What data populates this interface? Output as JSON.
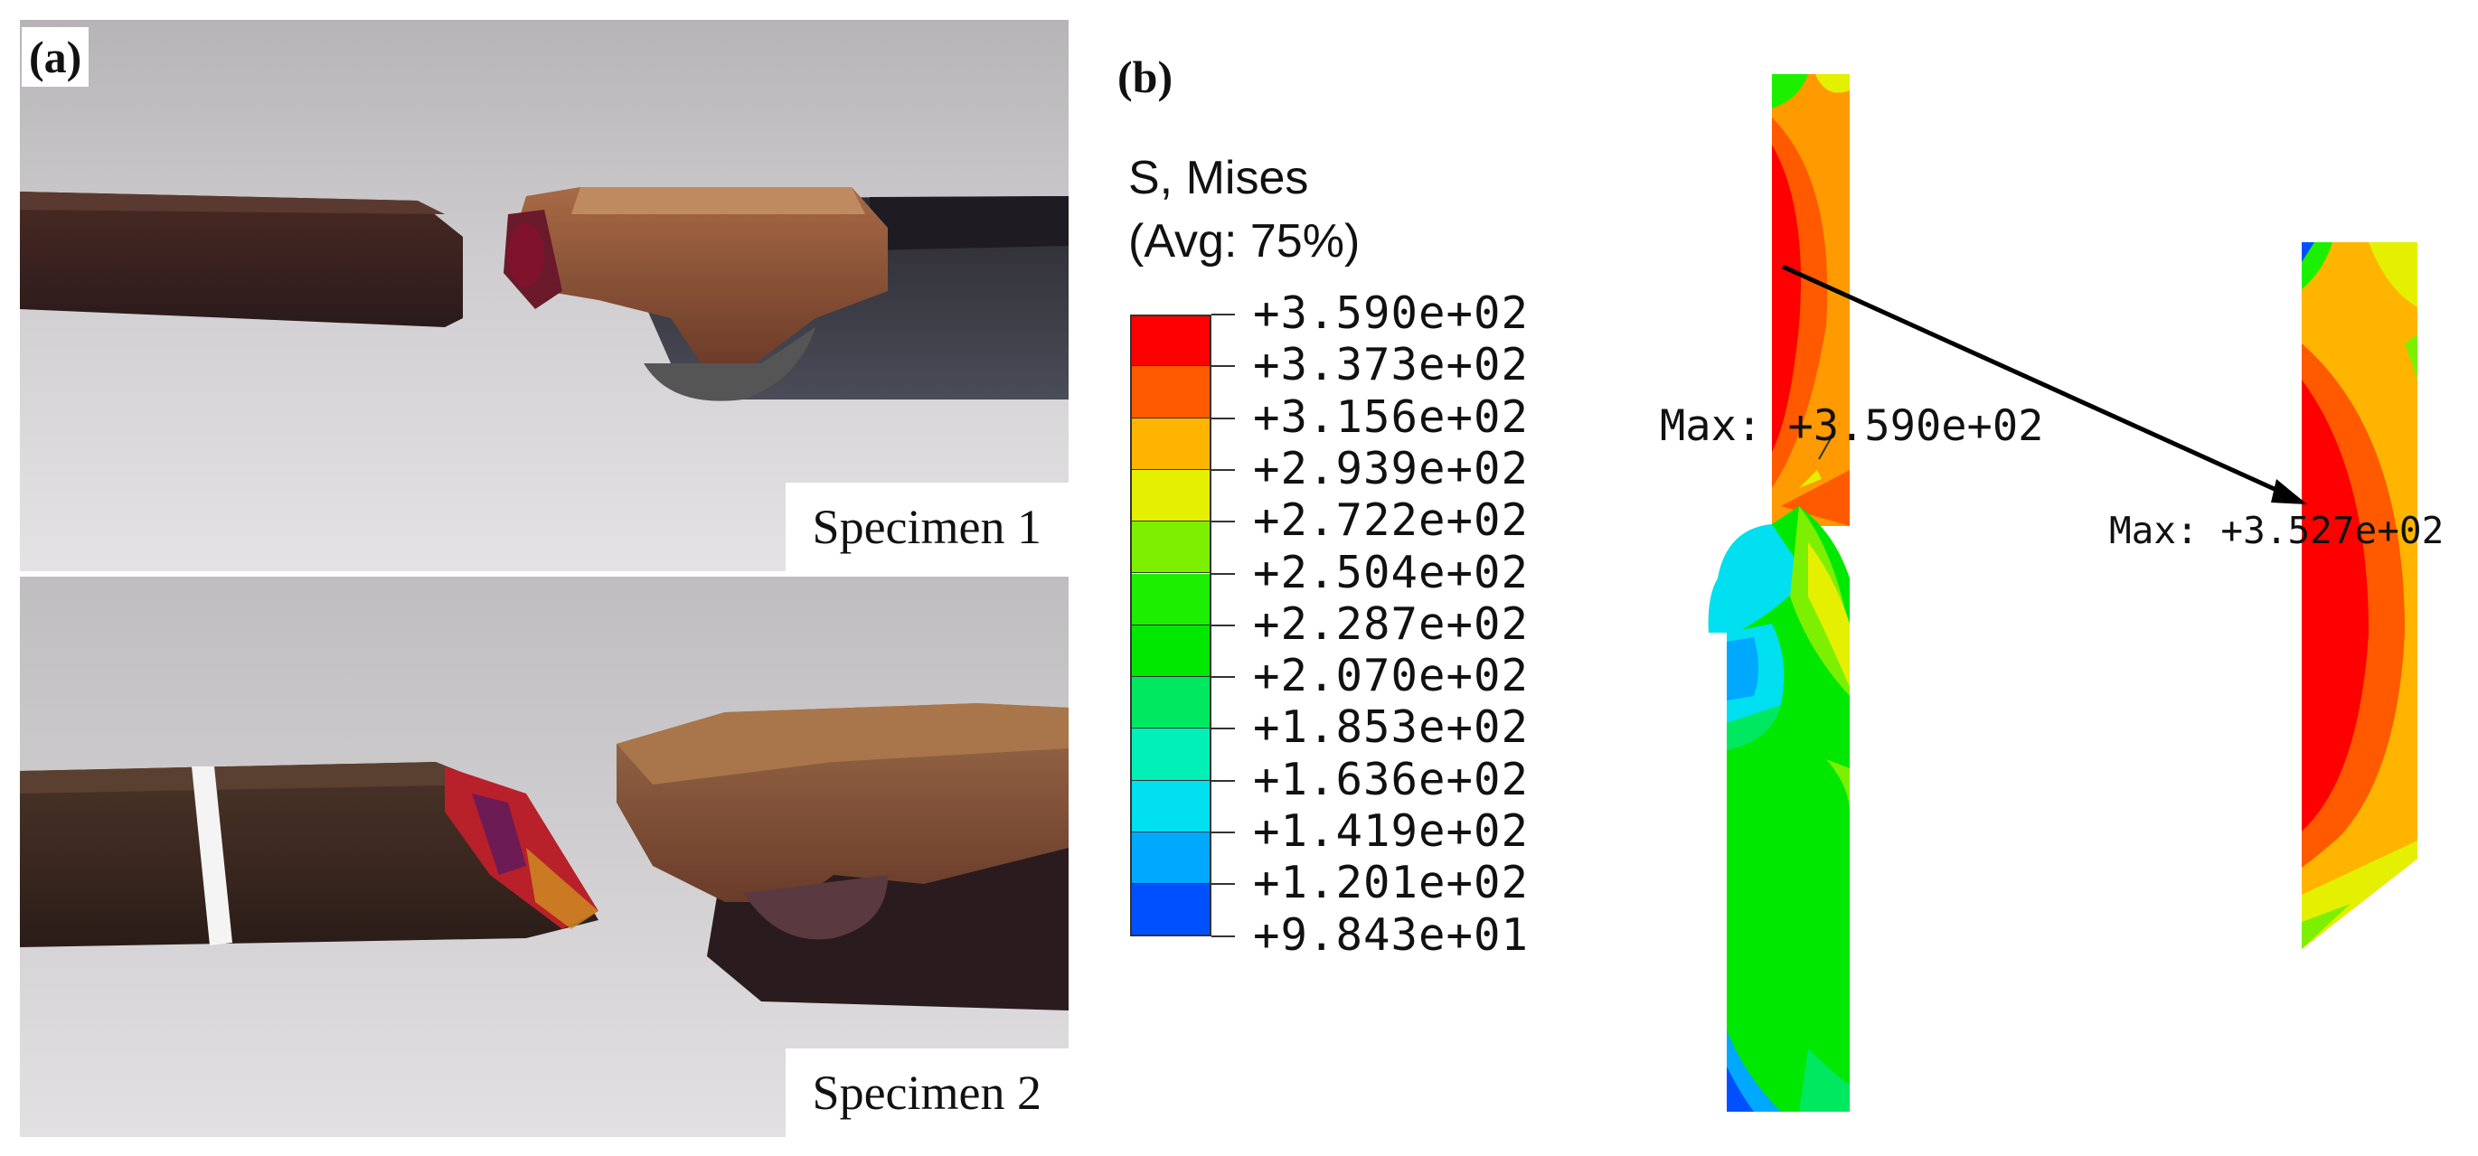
{
  "panel_a": {
    "label": "(a)",
    "specimen1_caption": "Specimen 1",
    "specimen2_caption": "Specimen 2"
  },
  "panel_b": {
    "label": "(b)",
    "legend": {
      "title_line1": "S, Mises",
      "title_line2": "(Avg: 75%)",
      "values": [
        "+3.590e+02",
        "+3.373e+02",
        "+3.156e+02",
        "+2.939e+02",
        "+2.722e+02",
        "+2.504e+02",
        "+2.287e+02",
        "+2.070e+02",
        "+1.853e+02",
        "+1.636e+02",
        "+1.419e+02",
        "+1.201e+02",
        "+9.843e+01"
      ],
      "colors": [
        "#ff0000",
        "#ff5a00",
        "#ffb400",
        "#e5f000",
        "#7cf000",
        "#1cf000",
        "#00e800",
        "#00e860",
        "#00f0b8",
        "#00e0f0",
        "#00a8ff",
        "#0050ff",
        "#0000ff"
      ]
    },
    "max_label_1": "Max: +3.590e+02",
    "max_label_2": "Max: +3.527e+02"
  }
}
